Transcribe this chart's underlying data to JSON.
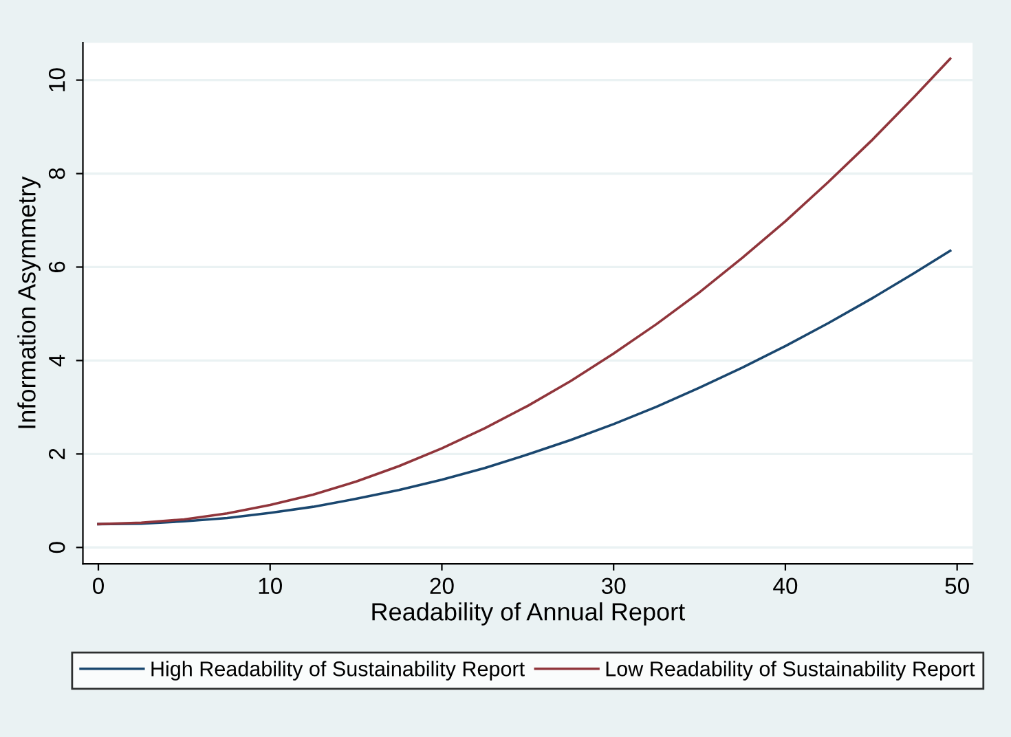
{
  "chart_data": {
    "type": "line",
    "xlabel": "Readability of Annual Report",
    "ylabel": "Information Asymmetry",
    "x": [
      0,
      2.5,
      5,
      7.5,
      10,
      12.5,
      15,
      17.5,
      20,
      22.5,
      25,
      27.5,
      30,
      32.5,
      35,
      37.5,
      40,
      42.5,
      45,
      47.5,
      49.6
    ],
    "series": [
      {
        "name": "High Readability of Sustainability Report",
        "color": "#1a476f",
        "values": [
          0.5,
          0.51,
          0.56,
          0.63,
          0.74,
          0.87,
          1.04,
          1.23,
          1.45,
          1.7,
          1.99,
          2.3,
          2.64,
          3.01,
          3.42,
          3.85,
          4.31,
          4.8,
          5.32,
          5.87,
          6.35
        ]
      },
      {
        "name": "Low Readability of Sustainability Report",
        "color": "#90353b",
        "values": [
          0.5,
          0.53,
          0.6,
          0.73,
          0.91,
          1.13,
          1.41,
          1.74,
          2.12,
          2.55,
          3.03,
          3.56,
          4.15,
          4.78,
          5.46,
          6.2,
          6.98,
          7.82,
          8.7,
          9.64,
          10.46
        ]
      }
    ],
    "xlim": [
      -0.9,
      50.9
    ],
    "xticks": [
      0,
      10,
      20,
      30,
      40,
      50
    ],
    "ylim": [
      -0.35,
      10.8
    ],
    "yticks": [
      0,
      2,
      4,
      6,
      8,
      10
    ],
    "grid": "y",
    "legend": "bottom",
    "marker": "none",
    "line_style": "solid"
  }
}
